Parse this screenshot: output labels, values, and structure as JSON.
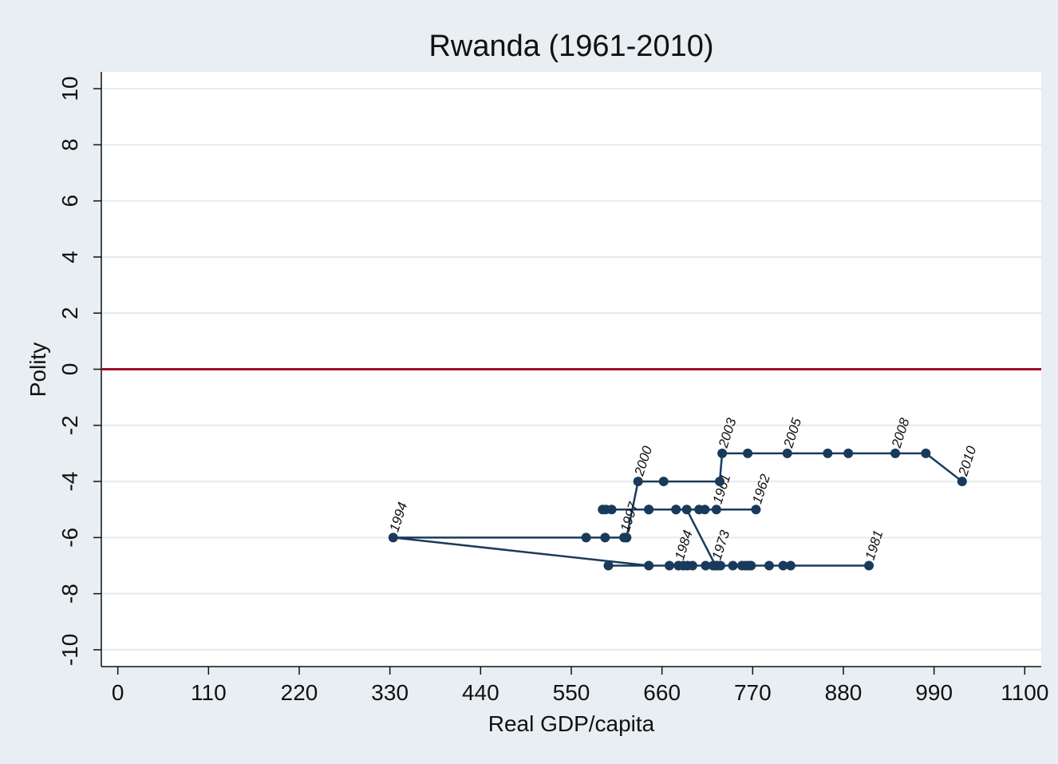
{
  "chart_data": {
    "type": "connected_scatter",
    "title": "Rwanda (1961-2010)",
    "x_label": "Real GDP/capita",
    "y_label": "Polity",
    "x": [
      726,
      774,
      712,
      705,
      677,
      644,
      599,
      592,
      588,
      644,
      677,
      690,
      725,
      731,
      746,
      757,
      768,
      790,
      807,
      816,
      911,
      761,
      713,
      680,
      691,
      697,
      722,
      727,
      765,
      686,
      669,
      595,
      644,
      334,
      568,
      591,
      614,
      617,
      617,
      631,
      662,
      730,
      733,
      764,
      812,
      861,
      886,
      943,
      980,
      1024
    ],
    "values": [
      -5,
      -5,
      -5,
      -5,
      -5,
      -5,
      -5,
      -5,
      -5,
      -5,
      -5,
      -5,
      -7,
      -7,
      -7,
      -7,
      -7,
      -7,
      -7,
      -7,
      -7,
      -7,
      -7,
      -7,
      -7,
      -7,
      -7,
      -7,
      -7,
      -7,
      -7,
      -7,
      -7,
      -6,
      -6,
      -6,
      -6,
      -6,
      -6,
      -4,
      -4,
      -4,
      -3,
      -3,
      -3,
      -3,
      -3,
      -3,
      -3,
      -4
    ],
    "labels": [
      "1961",
      "1962",
      null,
      null,
      null,
      null,
      null,
      null,
      null,
      null,
      null,
      null,
      "1973",
      null,
      null,
      null,
      null,
      null,
      null,
      null,
      "1981",
      null,
      null,
      "1984",
      null,
      null,
      null,
      null,
      null,
      null,
      null,
      null,
      null,
      "1994",
      null,
      null,
      "1997",
      null,
      null,
      "2000",
      null,
      null,
      "2003",
      null,
      "2005",
      null,
      null,
      "2008",
      null,
      "2010"
    ],
    "color": "#1a3a5c",
    "xlim": [
      -20,
      1120
    ],
    "ylim": [
      -10.6,
      10.6
    ],
    "xticks": [
      0,
      110,
      220,
      330,
      440,
      550,
      660,
      770,
      880,
      990,
      1100
    ],
    "yticks": [
      -10,
      -8,
      -6,
      -4,
      -2,
      0,
      2,
      4,
      6,
      8,
      10
    ],
    "grid": true,
    "refline": 0,
    "refline_color": "#a0122e"
  }
}
